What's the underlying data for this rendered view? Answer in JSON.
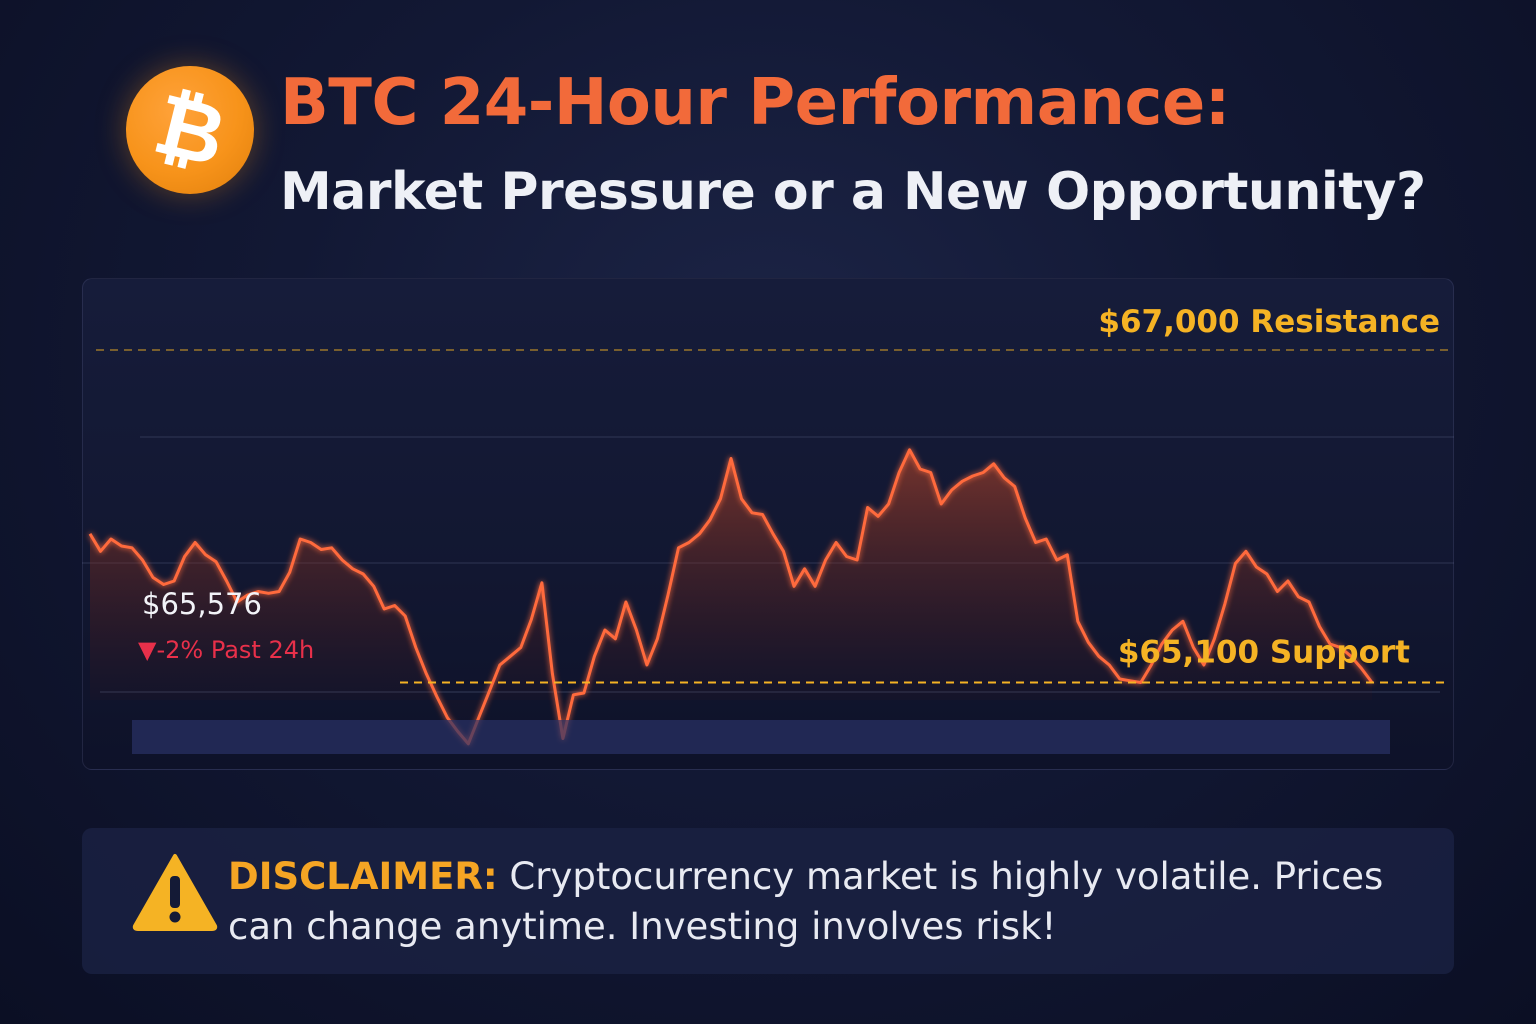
{
  "header": {
    "logo_glyph": "₿",
    "title": "BTC 24-Hour Performance:",
    "subtitle": "Market Pressure or a New Opportunity?"
  },
  "colors": {
    "accent": "#f26a3a",
    "bitcoin": "#f7931a",
    "level": "#f5b324",
    "negative": "#e8304a",
    "background": "#121834"
  },
  "chart_data": {
    "type": "line",
    "ylim": [
      64600,
      67400
    ],
    "price": "$65,576",
    "change": "▼-2% Past 24h",
    "levels": [
      {
        "label": "$67,000 Resistance",
        "value": 67000
      },
      {
        "label": "$65,100 Support",
        "value": 65100
      }
    ],
    "series": [
      {
        "values": [
          65950,
          65850,
          65920,
          65880,
          65870,
          65800,
          65700,
          65660,
          65680,
          65820,
          65900,
          65830,
          65790,
          65680,
          65560,
          65600,
          65620,
          65610,
          65620,
          65730,
          65920,
          65900,
          65860,
          65870,
          65800,
          65750,
          65720,
          65650,
          65520,
          65540,
          65480,
          65300,
          65150,
          65020,
          64900,
          64820,
          64750,
          64900,
          65050,
          65200,
          65250,
          65300,
          65460,
          65670,
          65150,
          64780,
          65030,
          65040,
          65250,
          65400,
          65350,
          65560,
          65400,
          65200,
          65350,
          65600,
          65870,
          65900,
          65950,
          66030,
          66150,
          66380,
          66150,
          66070,
          66060,
          65950,
          65850,
          65650,
          65750,
          65650,
          65800,
          65900,
          65820,
          65800,
          66100,
          66050,
          66120,
          66300,
          66430,
          66320,
          66300,
          66120,
          66200,
          66250,
          66280,
          66300,
          66350,
          66270,
          66220,
          66040,
          65900,
          65920,
          65800,
          65830,
          65450,
          65330,
          65250,
          65200,
          65120,
          65110,
          65100,
          65200,
          65320,
          65400,
          65450,
          65300,
          65200,
          65350,
          65550,
          65780,
          65850,
          65760,
          65720,
          65620,
          65680,
          65590,
          65560,
          65420,
          65320,
          65300,
          65250,
          65180,
          65100
        ]
      }
    ]
  },
  "disclaimer": {
    "label": "DISCLAIMER:",
    "text": "Cryptocurrency market is highly volatile. Prices can change anytime. Investing involves risk!"
  }
}
